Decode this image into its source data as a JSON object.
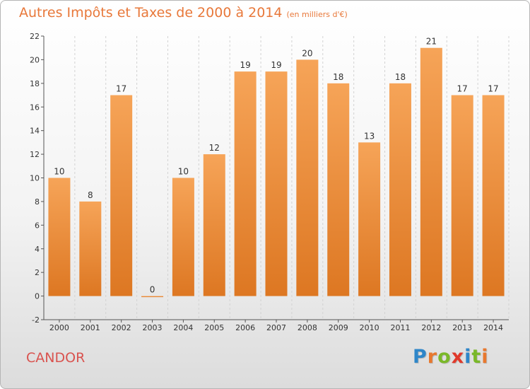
{
  "header": {
    "title": "Autres Impôts et Taxes de 2000 à 2014",
    "subtitle": "(en milliers d'€)"
  },
  "footer": {
    "commune": "CANDOR",
    "logo_letters": [
      "P",
      "r",
      "o",
      "x",
      "i",
      "t",
      "i"
    ],
    "logo_colors": [
      "#2e86c9",
      "#e8782e",
      "#7ab829",
      "#e0392b",
      "#2e86c9",
      "#7ab829",
      "#e8782e"
    ]
  },
  "colors": {
    "bar_top": "#f6a458",
    "bar_bottom": "#dd7722",
    "title": "#e8783a",
    "commune": "#d9534f"
  },
  "chart_data": {
    "type": "bar",
    "categories": [
      "2000",
      "2001",
      "2002",
      "2003",
      "2004",
      "2005",
      "2006",
      "2007",
      "2008",
      "2009",
      "2010",
      "2011",
      "2012",
      "2013",
      "2014"
    ],
    "values": [
      10,
      8,
      17,
      0,
      10,
      12,
      19,
      19,
      20,
      18,
      13,
      18,
      21,
      17,
      17
    ],
    "ylim": [
      -2,
      22
    ],
    "yticks": [
      -2,
      0,
      2,
      4,
      6,
      8,
      10,
      12,
      14,
      16,
      18,
      20,
      22
    ],
    "grid": "vertical dashed",
    "xlabel": "",
    "ylabel": ""
  }
}
